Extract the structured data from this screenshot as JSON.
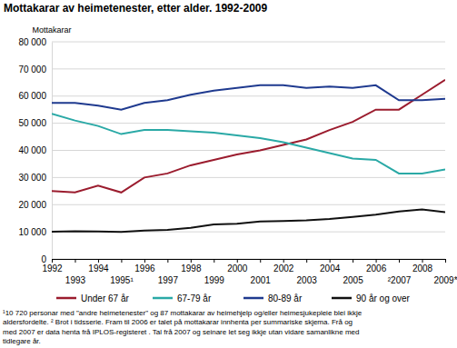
{
  "chart_data": {
    "type": "line",
    "title": "Mottakarar av heimetenester, etter alder. 1992-2009",
    "y_label": "Mottakarar",
    "x": [
      1992,
      1993,
      1994,
      1995,
      1996,
      1997,
      1998,
      1999,
      2000,
      2001,
      2002,
      2003,
      2004,
      2005,
      2006,
      2007,
      2008,
      2009
    ],
    "xlim": [
      1992,
      2009
    ],
    "xticks": [
      1992,
      1993,
      1994,
      {
        "value": 1995,
        "label": "1995¹"
      },
      1996,
      1997,
      1998,
      1999,
      2000,
      2001,
      2002,
      2003,
      2004,
      2005,
      2006,
      {
        "value": 2007,
        "label": "²2007"
      },
      2008,
      {
        "value": 2009,
        "label": "2009*"
      }
    ],
    "ylim": [
      0,
      80000
    ],
    "yticks": [
      0,
      {
        "value": 10000,
        "label": "10 000"
      },
      {
        "value": 20000,
        "label": "20 000"
      },
      {
        "value": 30000,
        "label": "30 000"
      },
      {
        "value": 40000,
        "label": "40 000"
      },
      {
        "value": 50000,
        "label": "50 000"
      },
      {
        "value": 60000,
        "label": "60 000"
      },
      {
        "value": 70000,
        "label": "70 000"
      },
      {
        "value": 80000,
        "label": "80 000"
      }
    ],
    "grid": true,
    "legend": "bottom",
    "series": [
      {
        "name": "Under 67 år",
        "color": "#9b1c2e",
        "values": [
          25000,
          24500,
          27000,
          24500,
          30000,
          31500,
          34500,
          36500,
          38500,
          40000,
          42000,
          44000,
          47500,
          50500,
          55000,
          55000,
          60500,
          66000
        ]
      },
      {
        "name": "67-79 år",
        "color": "#2aa9a6",
        "values": [
          53500,
          51000,
          49000,
          46000,
          47500,
          47500,
          47000,
          46500,
          45500,
          44500,
          43000,
          41000,
          39000,
          37000,
          36500,
          31500,
          31500,
          33000
        ]
      },
      {
        "name": "80-89 år",
        "color": "#1f3a8f",
        "values": [
          57500,
          57500,
          56500,
          55000,
          57500,
          58500,
          60500,
          62000,
          63000,
          64000,
          64000,
          63000,
          63500,
          63000,
          64000,
          58500,
          58500,
          59000
        ]
      },
      {
        "name": "90 år og over",
        "color": "#111111",
        "values": [
          10000,
          10200,
          10100,
          10000,
          10500,
          10700,
          11500,
          12700,
          13000,
          13800,
          14000,
          14200,
          14700,
          15500,
          16300,
          17500,
          18200,
          17200
        ]
      }
    ],
    "annotations": [
      "¹10 720 personar med \"andre heimetenester\" og 87 mottakarar av heimehjelp og/eller heimesjukepleie blei ikkje",
      "aldersfordelte. ² Brot i tidsserie. Fram til 2006 er talet på mottakarar innhenta per summariske skjema. Frå og",
      "med 2007 er data henta frå IPLOS-registeret . Tal frå 2007 og seinare let seg ikkje utan vidare samanlikne med",
      "tidlegare år."
    ]
  }
}
